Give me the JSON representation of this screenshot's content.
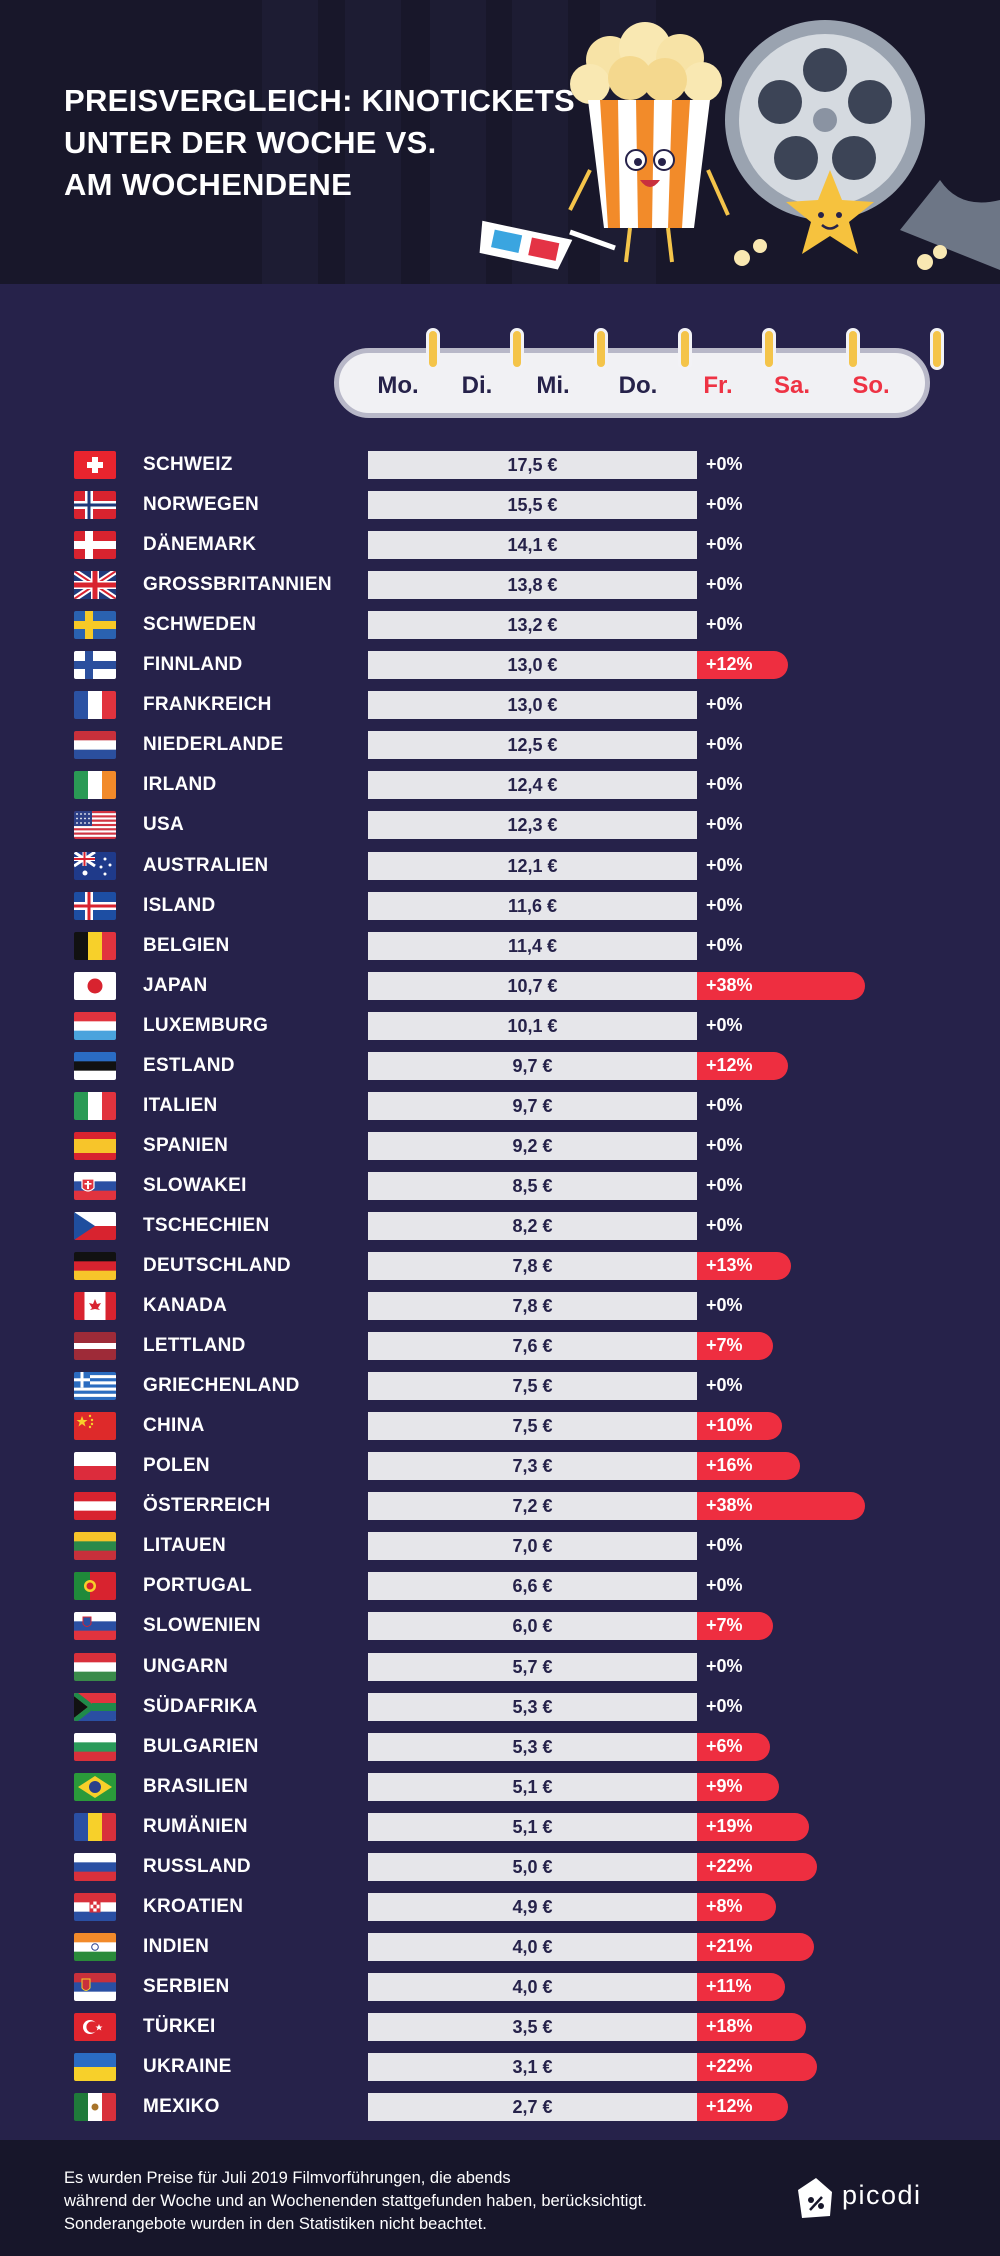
{
  "title": {
    "line1": "PREISVERGLEICH: KINOTICKETS",
    "line2": "UNTER DER WOCHE VS.",
    "line3": "AM WOCHENDENE"
  },
  "days": [
    {
      "label": "Mo.",
      "weekend": false
    },
    {
      "label": "Di.",
      "weekend": false
    },
    {
      "label": "Mi.",
      "weekend": false
    },
    {
      "label": "Do.",
      "weekend": false
    },
    {
      "label": "Fr.",
      "weekend": true
    },
    {
      "label": "Sa.",
      "weekend": true
    },
    {
      "label": "So.",
      "weekend": true
    }
  ],
  "colors": {
    "background": "#26224a",
    "header": "#18172a",
    "price_bar": "#e6e6ea",
    "increase_bar": "#ee2e40",
    "weekend_text": "#ee3344",
    "accent_yellow": "#f4c44a"
  },
  "chart_data": {
    "type": "bar",
    "categories": [
      "SCHWEIZ",
      "NORWEGEN",
      "DÄNEMARK",
      "GROSSBRITANNIEN",
      "SCHWEDEN",
      "FINNLAND",
      "FRANKREICH",
      "NIEDERLANDE",
      "IRLAND",
      "USA",
      "AUSTRALIEN",
      "ISLAND",
      "BELGIEN",
      "JAPAN",
      "LUXEMBURG",
      "ESTLAND",
      "ITALIEN",
      "SPANIEN",
      "SLOWAKEI",
      "TSCHECHIEN",
      "DEUTSCHLAND",
      "KANADA",
      "LETTLAND",
      "GRIECHENLAND",
      "CHINA",
      "POLEN",
      "ÖSTERREICH",
      "LITAUEN",
      "PORTUGAL",
      "SLOWENIEN",
      "UNGARN",
      "SÜDAFRIKA",
      "BULGARIEN",
      "BRASILIEN",
      "RUMÄNIEN",
      "RUSSLAND",
      "KROATIEN",
      "INDIEN",
      "SERBIEN",
      "TÜRKEI",
      "UKRAINE",
      "MEXIKO"
    ],
    "series": [
      {
        "values": [
          17.5,
          15.5,
          14.1,
          13.8,
          13.2,
          13.0,
          13.0,
          12.5,
          12.4,
          12.3,
          12.1,
          11.6,
          11.4,
          10.7,
          10.1,
          9.7,
          9.7,
          9.2,
          8.5,
          8.2,
          7.8,
          7.8,
          7.6,
          7.5,
          7.5,
          7.3,
          7.2,
          7.0,
          6.6,
          6.0,
          5.7,
          5.3,
          5.3,
          5.1,
          5.1,
          5.0,
          4.9,
          4.0,
          4.0,
          3.5,
          3.1,
          2.7
        ],
        "labels": [
          "17,5 €",
          "15,5 €",
          "14,1 €",
          "13,8 €",
          "13,2 €",
          "13,0 €",
          "13,0 €",
          "12,5 €",
          "12,4 €",
          "12,3 €",
          "12,1 €",
          "11,6 €",
          "11,4 €",
          "10,7 €",
          "10,1 €",
          "9,7 €",
          "9,7 €",
          "9,2 €",
          "8,5 €",
          "8,2 €",
          "7,8 €",
          "7,8 €",
          "7,6 €",
          "7,5 €",
          "7,5 €",
          "7,3 €",
          "7,2 €",
          "7,0 €",
          "6,6 €",
          "6,0 €",
          "5,7 €",
          "5,3 €",
          "5,3 €",
          "5,1 €",
          "5,1 €",
          "5,0 €",
          "4,9 €",
          "4,0 €",
          "4,0 €",
          "3,5 €",
          "3,1 €",
          "2,7 €"
        ]
      },
      {
        "values": [
          0,
          0,
          0,
          0,
          0,
          12,
          0,
          0,
          0,
          0,
          0,
          0,
          0,
          38,
          0,
          12,
          0,
          0,
          0,
          0,
          13,
          0,
          7,
          0,
          10,
          16,
          38,
          0,
          0,
          7,
          0,
          0,
          6,
          9,
          19,
          22,
          8,
          21,
          11,
          18,
          22,
          12
        ],
        "labels": [
          "+0%",
          "+0%",
          "+0%",
          "+0%",
          "+0%",
          "+12%",
          "+0%",
          "+0%",
          "+0%",
          "+0%",
          "+0%",
          "+0%",
          "+0%",
          "+38%",
          "+0%",
          "+12%",
          "+0%",
          "+0%",
          "+0%",
          "+0%",
          "+13%",
          "+0%",
          "+7%",
          "+0%",
          "+10%",
          "+16%",
          "+38%",
          "+0%",
          "+0%",
          "+7%",
          "+0%",
          "+0%",
          "+6%",
          "+9%",
          "+19%",
          "+22%",
          "+8%",
          "+21%",
          "+11%",
          "+18%",
          "+22%",
          "+12%"
        ]
      }
    ],
    "flags": [
      "ch",
      "no",
      "dk",
      "gb",
      "se",
      "fi",
      "fr",
      "nl",
      "ie",
      "us",
      "au",
      "is",
      "be",
      "jp",
      "lu",
      "ee",
      "it",
      "es",
      "sk",
      "cz",
      "de",
      "ca",
      "lv",
      "gr",
      "cn",
      "pl",
      "at",
      "lt",
      "pt",
      "si",
      "hu",
      "za",
      "bg",
      "br",
      "ro",
      "ru",
      "hr",
      "in",
      "rs",
      "tr",
      "ua",
      "mx"
    ]
  },
  "footer": {
    "note_line1": "Es wurden Preise für Juli 2019 Filmvorführungen, die abends",
    "note_line2": "während der Woche und an Wochenenden stattgefunden haben, berücksichtigt.",
    "note_line3": "Sonderangebote wurden in den Statistiken nicht beachtet.",
    "logo_text": "picodi"
  }
}
